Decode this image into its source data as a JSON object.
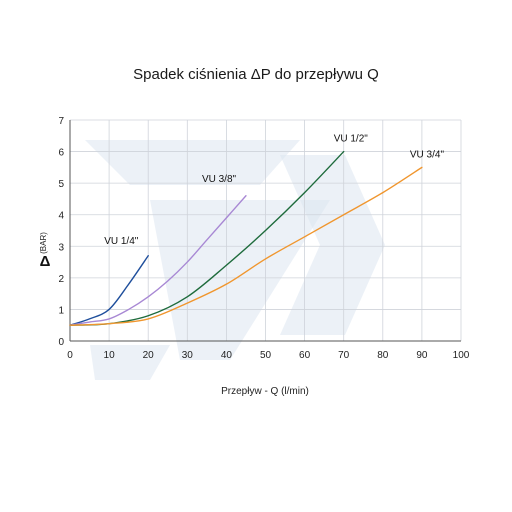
{
  "chart_data": {
    "type": "line",
    "title": "Spadek ciśnienia ΔP do przepływu Q",
    "xlabel": "Przepływ -  Q  (l/min)",
    "ylabel_symbol": "Δ",
    "ylabel_unit": "(BAR)",
    "xlim": [
      0,
      100
    ],
    "ylim": [
      0,
      7
    ],
    "xticks": [
      "0",
      "10",
      "20",
      "30",
      "40",
      "50",
      "60",
      "70",
      "80",
      "90",
      "100"
    ],
    "yticks": [
      "0",
      "1",
      "2",
      "3",
      "4",
      "5",
      "6",
      "7"
    ],
    "grid": true,
    "series": [
      {
        "name": "VU 1/4\"",
        "color": "#1f4f9c",
        "x": [
          0,
          5,
          10,
          15,
          20
        ],
        "y": [
          0.5,
          0.7,
          1.0,
          1.8,
          2.7
        ]
      },
      {
        "name": "VU 3/8\"",
        "color": "#a888d4",
        "x": [
          0,
          5,
          10,
          15,
          20,
          25,
          30,
          35,
          40,
          45
        ],
        "y": [
          0.5,
          0.6,
          0.7,
          1.0,
          1.4,
          1.9,
          2.5,
          3.2,
          3.9,
          4.6
        ]
      },
      {
        "name": "VU 1/2\"",
        "color": "#1e6b3c",
        "x": [
          0,
          10,
          20,
          30,
          40,
          50,
          60,
          70
        ],
        "y": [
          0.5,
          0.55,
          0.8,
          1.4,
          2.4,
          3.5,
          4.7,
          6.0
        ]
      },
      {
        "name": "VU 3/4\"",
        "color": "#f0962e",
        "x": [
          0,
          10,
          20,
          30,
          40,
          50,
          60,
          70,
          80,
          90
        ],
        "y": [
          0.5,
          0.55,
          0.7,
          1.2,
          1.8,
          2.6,
          3.3,
          4.0,
          4.7,
          5.5
        ]
      }
    ]
  }
}
